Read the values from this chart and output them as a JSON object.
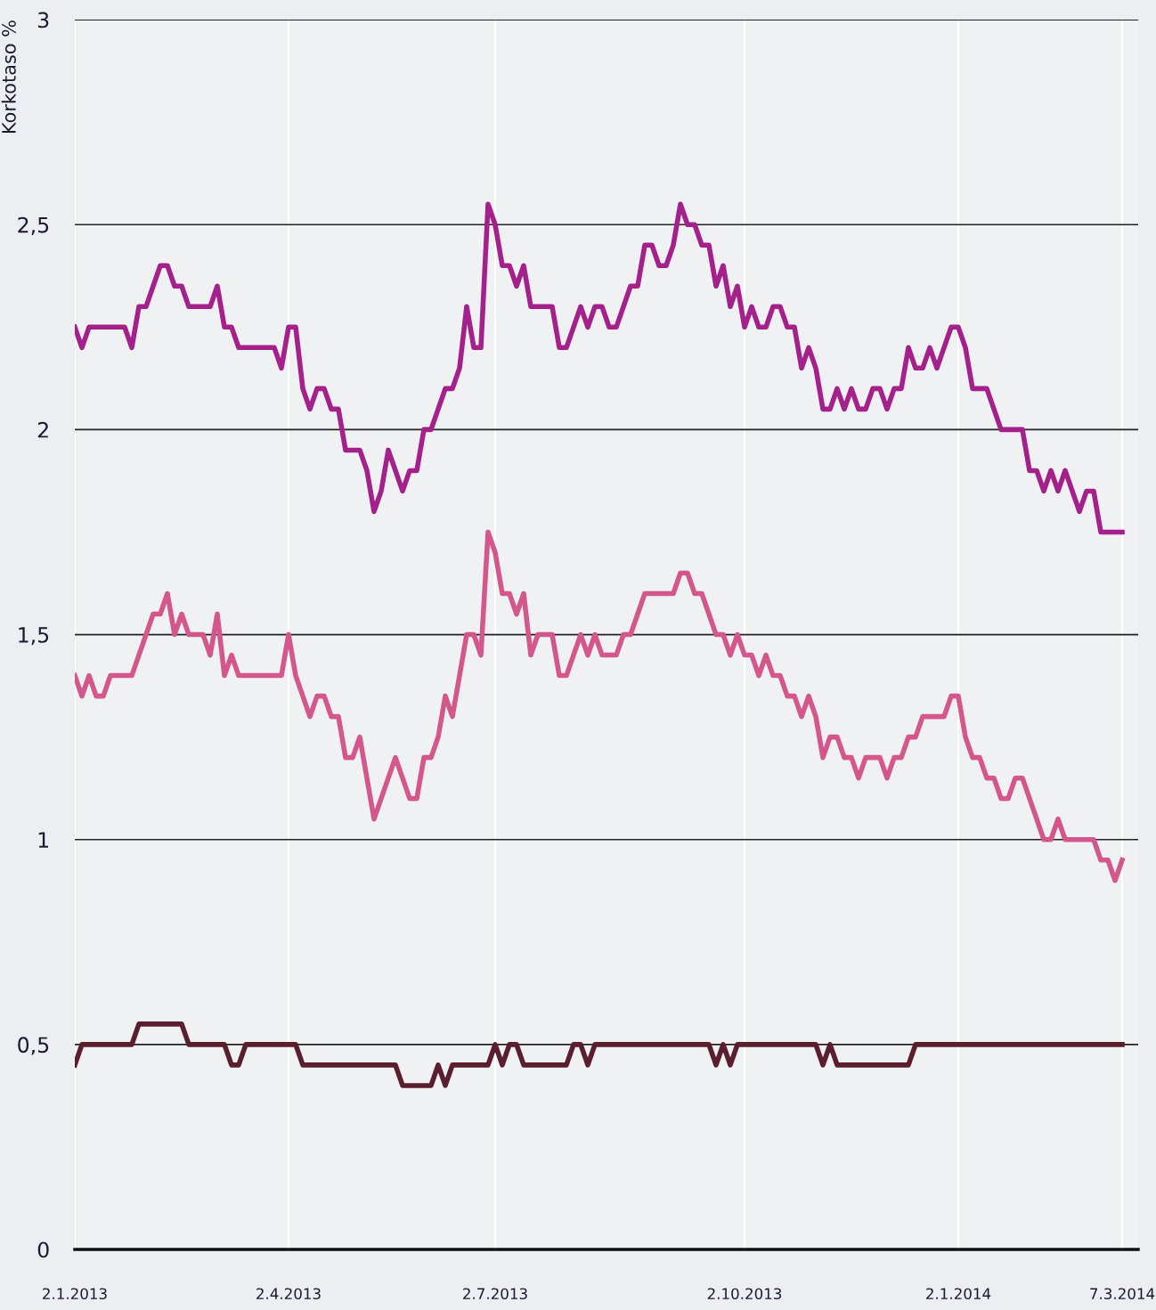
{
  "chart_data": {
    "type": "line",
    "ylabel": "Korkotaso %",
    "categories": [
      "2.1.2013",
      null,
      null,
      null,
      null,
      null,
      null,
      null,
      null,
      null,
      null,
      null,
      null,
      null,
      null,
      null,
      null,
      null,
      null,
      null,
      null,
      null,
      null,
      null,
      null,
      null,
      null,
      null,
      null,
      null,
      "2.4.2013",
      null,
      null,
      null,
      null,
      null,
      null,
      null,
      null,
      null,
      null,
      null,
      null,
      null,
      null,
      null,
      null,
      null,
      null,
      null,
      null,
      null,
      null,
      null,
      null,
      null,
      null,
      null,
      null,
      "2.7.2013",
      null,
      null,
      null,
      null,
      null,
      null,
      null,
      null,
      null,
      null,
      null,
      null,
      null,
      null,
      null,
      null,
      null,
      null,
      null,
      null,
      null,
      null,
      null,
      null,
      null,
      null,
      null,
      null,
      null,
      null,
      null,
      null,
      null,
      null,
      "2.10.2013",
      null,
      null,
      null,
      null,
      null,
      null,
      null,
      null,
      null,
      null,
      null,
      null,
      null,
      null,
      null,
      null,
      null,
      null,
      null,
      null,
      null,
      null,
      null,
      null,
      null,
      null,
      null,
      null,
      null,
      "2.1.2014",
      null,
      null,
      null,
      null,
      null,
      null,
      null,
      null,
      null,
      null,
      null,
      null,
      null,
      null,
      null,
      null,
      null,
      null,
      null,
      null,
      null,
      null,
      "7.3.2014"
    ],
    "series": [
      {
        "color": "#a4208a",
        "values": [
          2.25,
          2.2,
          2.25,
          2.25,
          2.25,
          2.25,
          2.25,
          2.25,
          2.2,
          2.3,
          2.3,
          2.35,
          2.4,
          2.4,
          2.35,
          2.35,
          2.3,
          2.3,
          2.3,
          2.3,
          2.35,
          2.25,
          2.25,
          2.2,
          2.2,
          2.2,
          2.2,
          2.2,
          2.2,
          2.15,
          2.25,
          2.25,
          2.1,
          2.05,
          2.1,
          2.1,
          2.05,
          2.05,
          1.95,
          1.95,
          1.95,
          1.9,
          1.8,
          1.85,
          1.95,
          1.9,
          1.85,
          1.9,
          1.9,
          2.0,
          2.0,
          2.05,
          2.1,
          2.1,
          2.15,
          2.3,
          2.2,
          2.2,
          2.55,
          2.5,
          2.4,
          2.4,
          2.35,
          2.4,
          2.3,
          2.3,
          2.3,
          2.3,
          2.2,
          2.2,
          2.25,
          2.3,
          2.25,
          2.3,
          2.3,
          2.25,
          2.25,
          2.3,
          2.35,
          2.35,
          2.45,
          2.45,
          2.4,
          2.4,
          2.45,
          2.55,
          2.5,
          2.5,
          2.45,
          2.45,
          2.35,
          2.4,
          2.3,
          2.35,
          2.25,
          2.3,
          2.25,
          2.25,
          2.3,
          2.3,
          2.25,
          2.25,
          2.15,
          2.2,
          2.15,
          2.05,
          2.05,
          2.1,
          2.05,
          2.1,
          2.05,
          2.05,
          2.1,
          2.1,
          2.05,
          2.1,
          2.1,
          2.2,
          2.15,
          2.15,
          2.2,
          2.15,
          2.2,
          2.25,
          2.25,
          2.2,
          2.1,
          2.1,
          2.1,
          2.05,
          2.0,
          2.0,
          2.0,
          2.0,
          1.9,
          1.9,
          1.85,
          1.9,
          1.85,
          1.9,
          1.85,
          1.8,
          1.85,
          1.85,
          1.75,
          1.75,
          1.75,
          1.75
        ]
      },
      {
        "color": "#d3578b",
        "values": [
          1.4,
          1.35,
          1.4,
          1.35,
          1.35,
          1.4,
          1.4,
          1.4,
          1.4,
          1.45,
          1.5,
          1.55,
          1.55,
          1.6,
          1.5,
          1.55,
          1.5,
          1.5,
          1.5,
          1.45,
          1.55,
          1.4,
          1.45,
          1.4,
          1.4,
          1.4,
          1.4,
          1.4,
          1.4,
          1.4,
          1.5,
          1.4,
          1.35,
          1.3,
          1.35,
          1.35,
          1.3,
          1.3,
          1.2,
          1.2,
          1.25,
          1.15,
          1.05,
          1.1,
          1.15,
          1.2,
          1.15,
          1.1,
          1.1,
          1.2,
          1.2,
          1.25,
          1.35,
          1.3,
          1.4,
          1.5,
          1.5,
          1.45,
          1.75,
          1.7,
          1.6,
          1.6,
          1.55,
          1.6,
          1.45,
          1.5,
          1.5,
          1.5,
          1.4,
          1.4,
          1.45,
          1.5,
          1.45,
          1.5,
          1.45,
          1.45,
          1.45,
          1.5,
          1.5,
          1.55,
          1.6,
          1.6,
          1.6,
          1.6,
          1.6,
          1.65,
          1.65,
          1.6,
          1.6,
          1.55,
          1.5,
          1.5,
          1.45,
          1.5,
          1.45,
          1.45,
          1.4,
          1.45,
          1.4,
          1.4,
          1.35,
          1.35,
          1.3,
          1.35,
          1.3,
          1.2,
          1.25,
          1.25,
          1.2,
          1.2,
          1.15,
          1.2,
          1.2,
          1.2,
          1.15,
          1.2,
          1.2,
          1.25,
          1.25,
          1.3,
          1.3,
          1.3,
          1.3,
          1.35,
          1.35,
          1.25,
          1.2,
          1.2,
          1.15,
          1.15,
          1.1,
          1.1,
          1.15,
          1.15,
          1.1,
          1.05,
          1.0,
          1.0,
          1.05,
          1.0,
          1.0,
          1.0,
          1.0,
          1.0,
          0.95,
          0.95,
          0.9,
          0.95
        ]
      },
      {
        "color": "#5a1e2f",
        "values": [
          0.45,
          0.5,
          0.5,
          0.5,
          0.5,
          0.5,
          0.5,
          0.5,
          0.5,
          0.55,
          0.55,
          0.55,
          0.55,
          0.55,
          0.55,
          0.55,
          0.5,
          0.5,
          0.5,
          0.5,
          0.5,
          0.5,
          0.45,
          0.45,
          0.5,
          0.5,
          0.5,
          0.5,
          0.5,
          0.5,
          0.5,
          0.5,
          0.45,
          0.45,
          0.45,
          0.45,
          0.45,
          0.45,
          0.45,
          0.45,
          0.45,
          0.45,
          0.45,
          0.45,
          0.45,
          0.45,
          0.4,
          0.4,
          0.4,
          0.4,
          0.4,
          0.45,
          0.4,
          0.45,
          0.45,
          0.45,
          0.45,
          0.45,
          0.45,
          0.5,
          0.45,
          0.5,
          0.5,
          0.45,
          0.45,
          0.45,
          0.45,
          0.45,
          0.45,
          0.45,
          0.5,
          0.5,
          0.45,
          0.5,
          0.5,
          0.5,
          0.5,
          0.5,
          0.5,
          0.5,
          0.5,
          0.5,
          0.5,
          0.5,
          0.5,
          0.5,
          0.5,
          0.5,
          0.5,
          0.5,
          0.45,
          0.5,
          0.45,
          0.5,
          0.5,
          0.5,
          0.5,
          0.5,
          0.5,
          0.5,
          0.5,
          0.5,
          0.5,
          0.5,
          0.5,
          0.45,
          0.5,
          0.45,
          0.45,
          0.45,
          0.45,
          0.45,
          0.45,
          0.45,
          0.45,
          0.45,
          0.45,
          0.45,
          0.5,
          0.5,
          0.5,
          0.5,
          0.5,
          0.5,
          0.5,
          0.5,
          0.5,
          0.5,
          0.5,
          0.5,
          0.5,
          0.5,
          0.5,
          0.5,
          0.5,
          0.5,
          0.5,
          0.5,
          0.5,
          0.5,
          0.5,
          0.5,
          0.5,
          0.5,
          0.5,
          0.5,
          0.5,
          0.5
        ]
      }
    ],
    "ylim": [
      0,
      3
    ],
    "yticks": [
      {
        "value": 0,
        "label": "0"
      },
      {
        "value": 0.5,
        "label": "0,5"
      },
      {
        "value": 1,
        "label": "1"
      },
      {
        "value": 1.5,
        "label": "1,5"
      },
      {
        "value": 2,
        "label": "2"
      },
      {
        "value": 2.5,
        "label": "2,5"
      },
      {
        "value": 3,
        "label": "3"
      }
    ],
    "grid": true,
    "marker": "none",
    "line_style": "solid"
  }
}
